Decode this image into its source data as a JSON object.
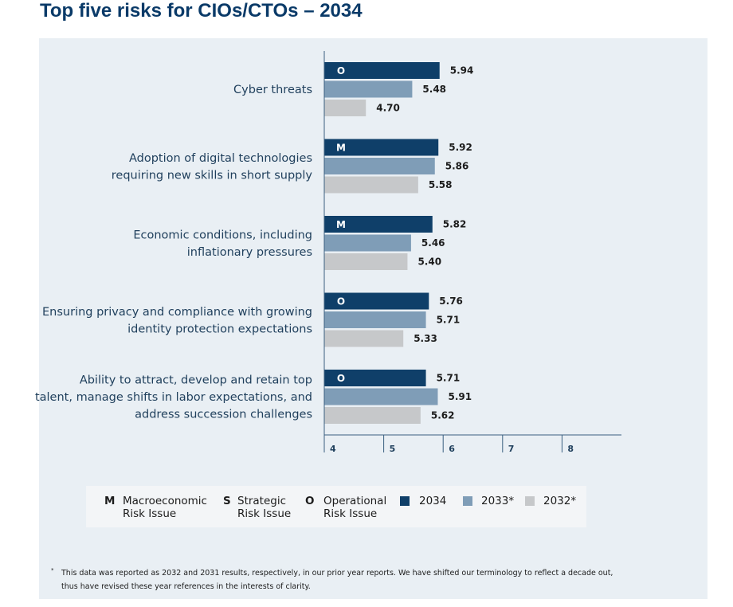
{
  "title": "Top five risks for CIOs/CTOs – 2034",
  "colors": {
    "panel_bg": "#e9eff4",
    "series_2034": "#0f3f69",
    "series_2033": "#7f9db7",
    "series_2032": "#c6c8ca",
    "axis": "#3a5f80"
  },
  "chart_data": {
    "type": "bar",
    "orientation": "horizontal",
    "title": "",
    "xlabel": "",
    "ylabel": "",
    "xlim": [
      4,
      9
    ],
    "xticks": [
      "4",
      "5",
      "6",
      "7",
      "8"
    ],
    "grid": false,
    "legend_position": "bottom",
    "categories": [
      [
        "Cyber threats"
      ],
      [
        "Adoption of digital technologies",
        "requiring new skills in short supply"
      ],
      [
        "Economic conditions, including",
        "inflationary pressures"
      ],
      [
        "Ensuring privacy and compliance with growing",
        "identity protection expectations"
      ],
      [
        "Ability to attract, develop and retain top",
        "talent, manage shifts in labor expectations, and",
        "address succession challenges"
      ]
    ],
    "risk_type": [
      "O",
      "M",
      "M",
      "O",
      "O"
    ],
    "series": [
      {
        "name": "2034",
        "values": [
          5.94,
          5.92,
          5.82,
          5.76,
          5.71
        ],
        "labels": [
          "5.94",
          "5.92",
          "5.82",
          "5.76",
          "5.71"
        ]
      },
      {
        "name": "2033*",
        "values": [
          5.48,
          5.86,
          5.46,
          5.71,
          5.91
        ],
        "labels": [
          "5.48",
          "5.86",
          "5.46",
          "5.71",
          "5.91"
        ]
      },
      {
        "name": "2032*",
        "values": [
          4.7,
          5.58,
          5.4,
          5.33,
          5.62
        ],
        "labels": [
          "4.70",
          "5.58",
          "5.40",
          "5.33",
          "5.62"
        ]
      }
    ]
  },
  "legend": {
    "risk_types": [
      {
        "code": "M",
        "line1": "Macroeconomic",
        "line2": "Risk Issue"
      },
      {
        "code": "S",
        "line1": "Strategic",
        "line2": "Risk Issue"
      },
      {
        "code": "O",
        "line1": "Operational",
        "line2": "Risk Issue"
      }
    ],
    "years": [
      "2034",
      "2033*",
      "2032*"
    ]
  },
  "footnote": {
    "mark": "*",
    "line1": "This data was reported as 2032 and 2031 results, respectively, in our prior year reports. We have shifted our terminology to reflect a decade out,",
    "line2": "thus have revised these year references in the interests of clarity."
  }
}
